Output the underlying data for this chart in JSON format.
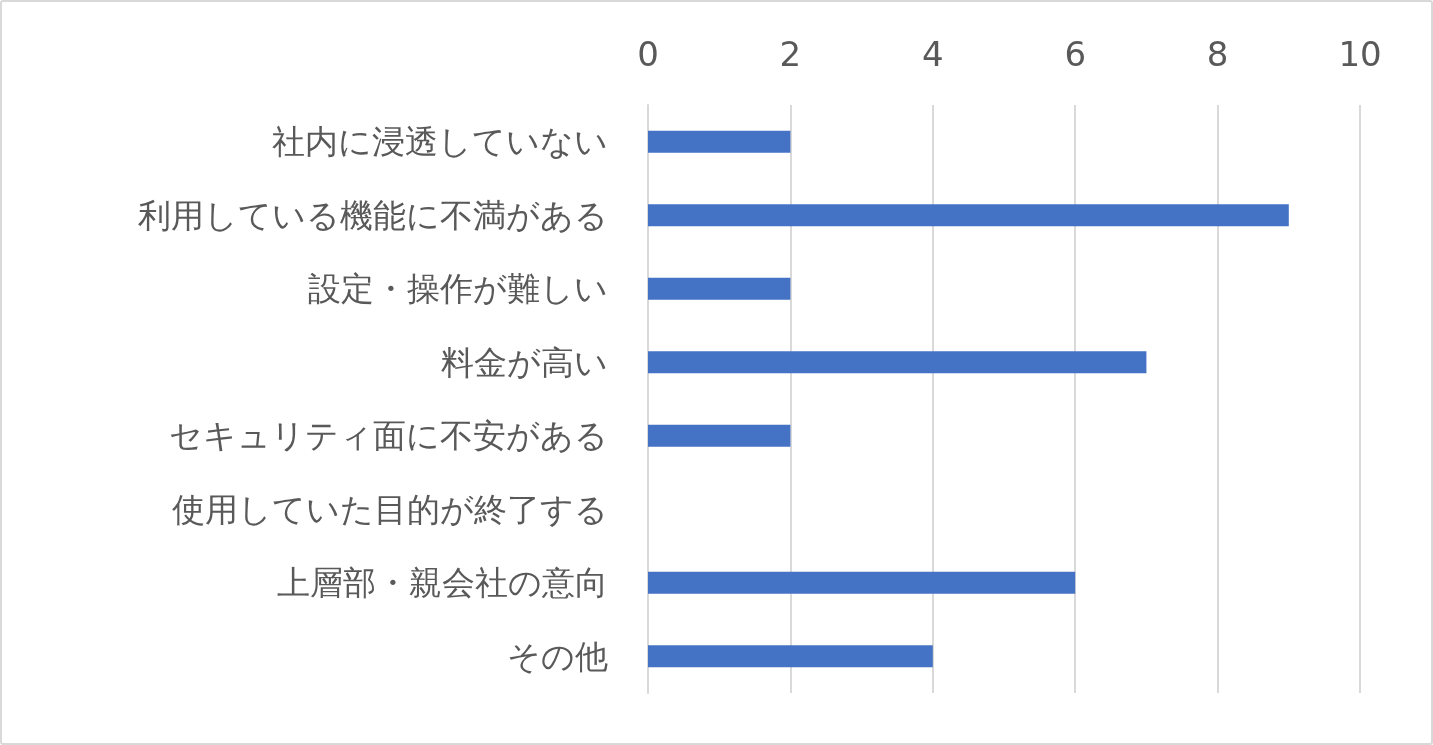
{
  "chart_data": {
    "type": "bar",
    "orientation": "horizontal",
    "categories": [
      "社内に浸透していない",
      "利用している機能に不満がある",
      "設定・操作が難しい",
      "料金が高い",
      "セキュリティ面に不安がある",
      "使用していた目的が終了する",
      "上層部・親会社の意向",
      "その他"
    ],
    "values": [
      2,
      9,
      2,
      7,
      2,
      0,
      6,
      4
    ],
    "color": "#4472c4",
    "xlim": [
      0,
      10
    ],
    "xticks": [
      0,
      2,
      4,
      6,
      8,
      10
    ],
    "grid": "x"
  }
}
